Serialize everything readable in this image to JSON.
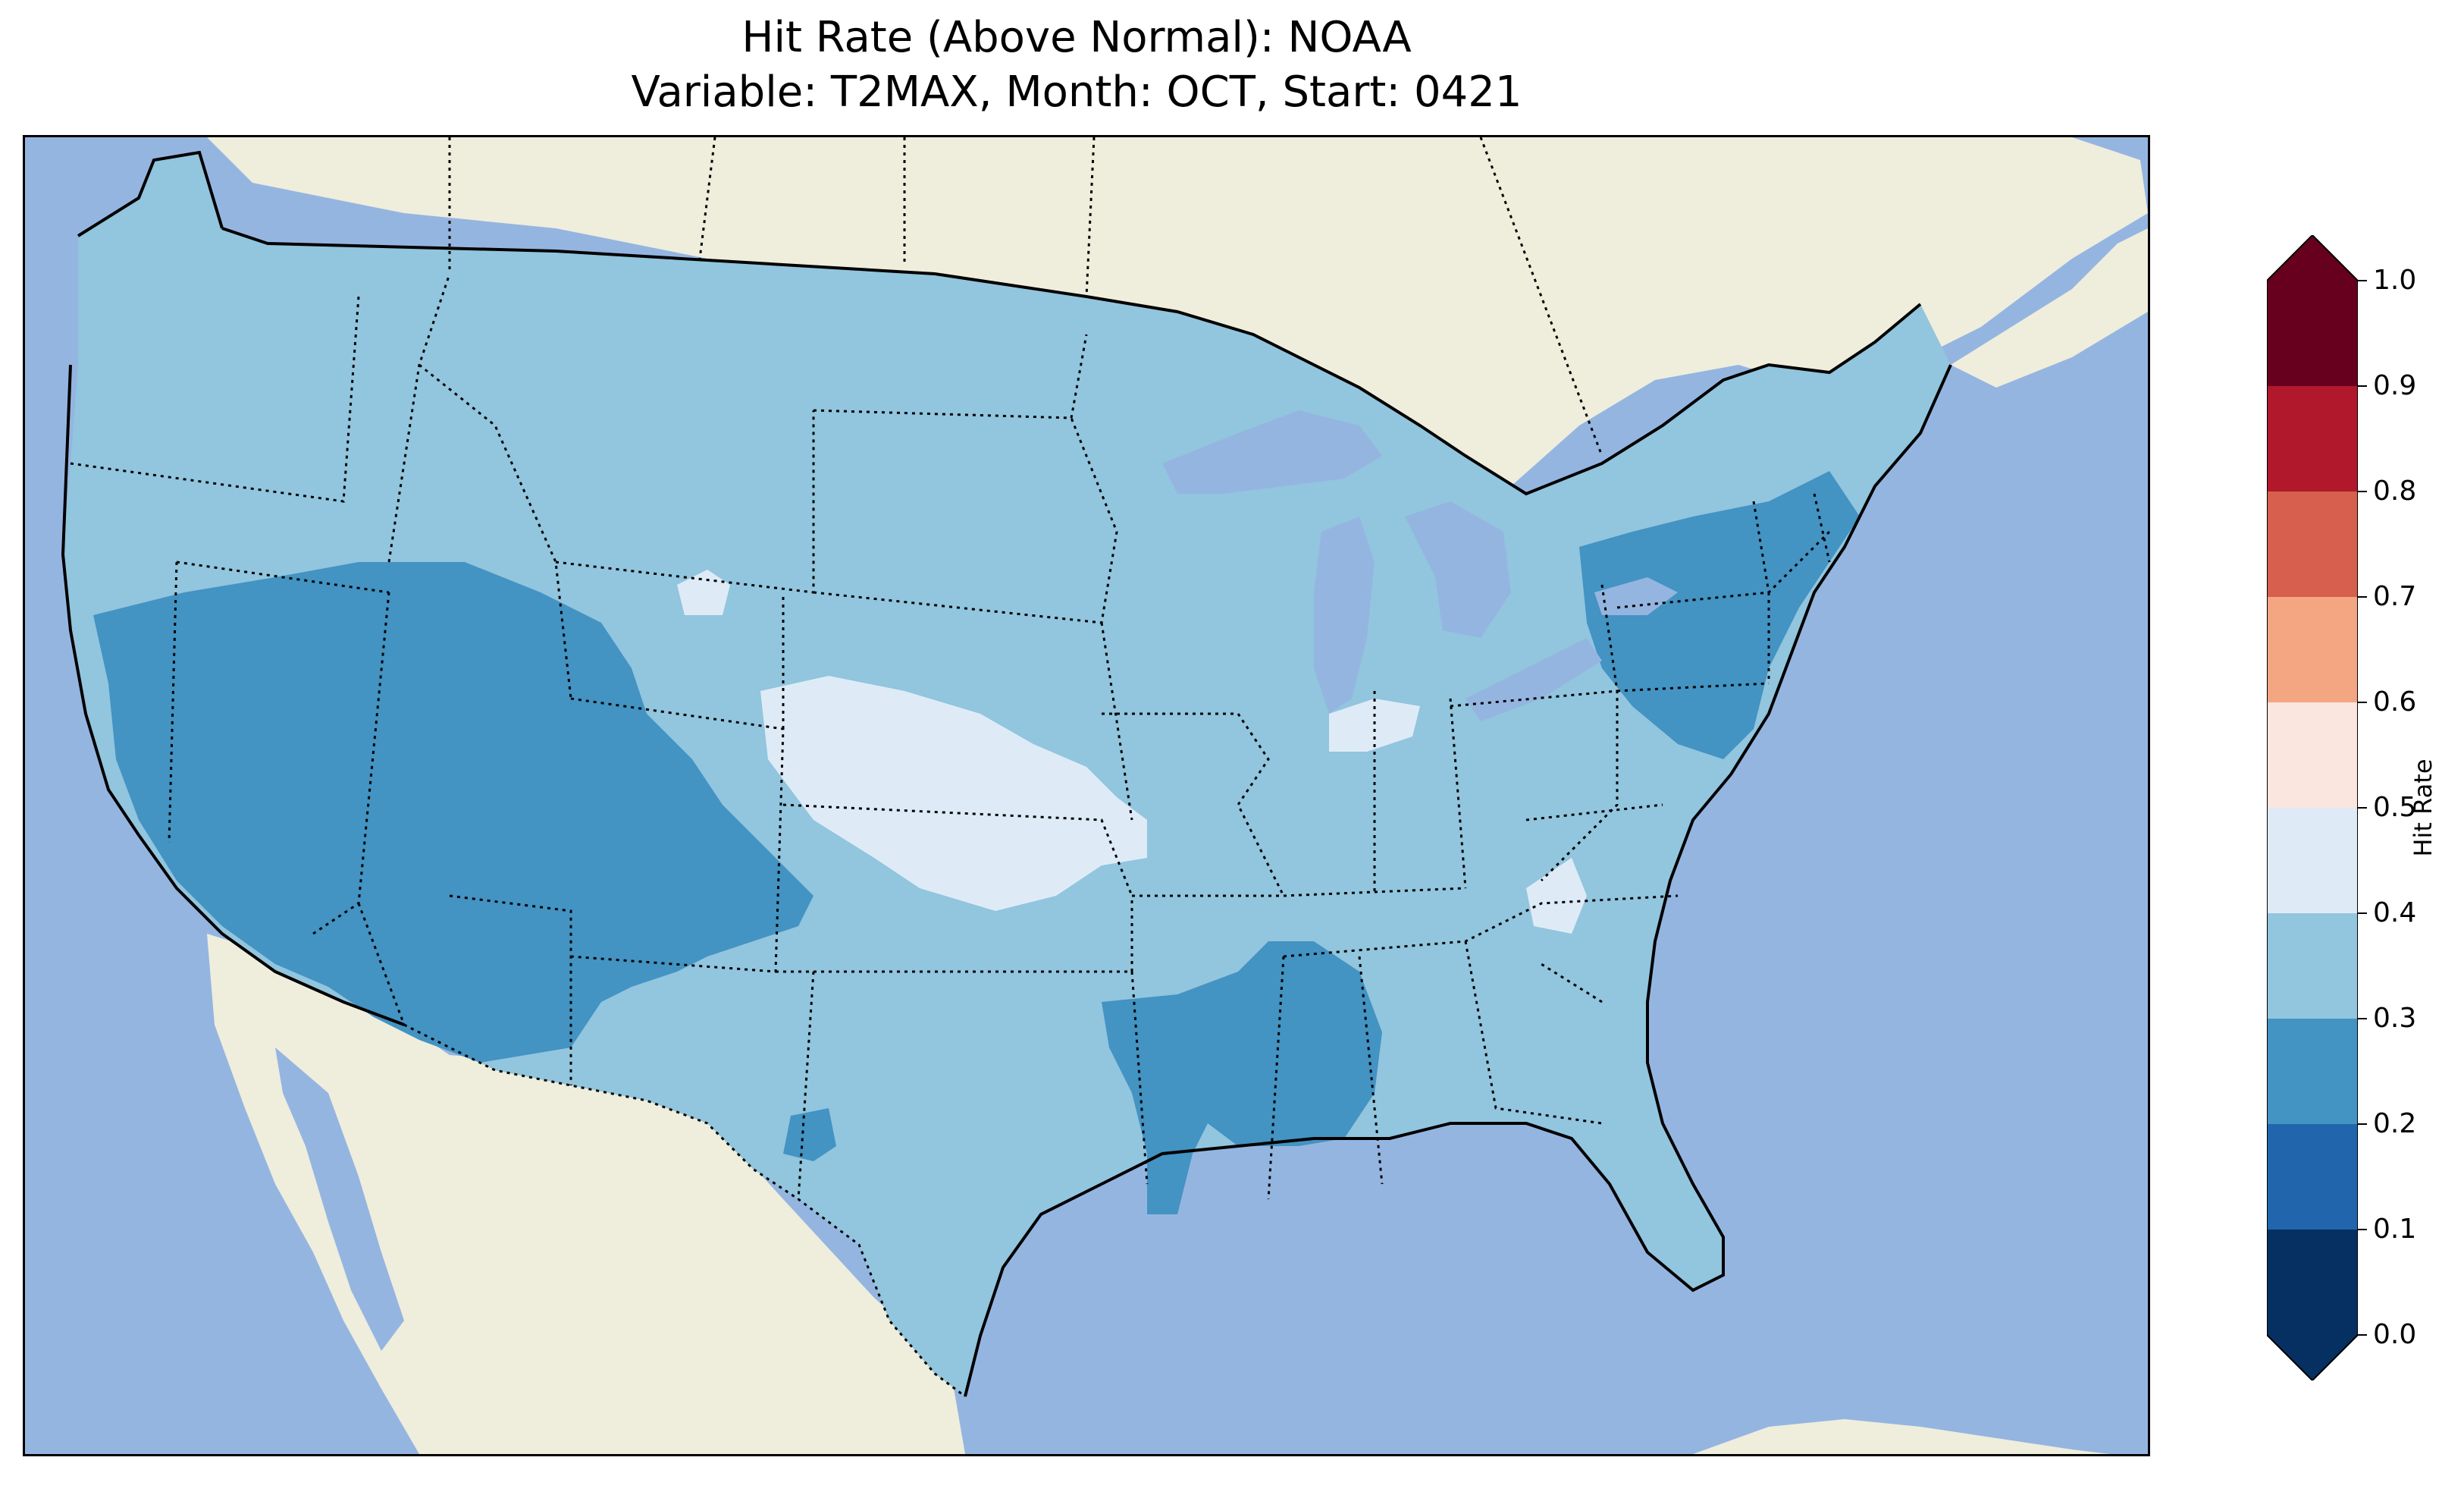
{
  "title": {
    "line1": "Hit Rate (Above Normal): NOAA",
    "line2": "Variable: T2MAX, Month: OCT, Start: 0421"
  },
  "colors": {
    "ocean": "#95b5e1",
    "land_outside": "#efeddc",
    "lakes": "#95b5e1",
    "coast_line": "#000000",
    "border_line": "#000000"
  },
  "colorbar": {
    "label": "Hit Rate",
    "ticks": [
      "0.0",
      "0.1",
      "0.2",
      "0.3",
      "0.4",
      "0.5",
      "0.6",
      "0.7",
      "0.8",
      "0.9",
      "1.0"
    ],
    "bins": [
      {
        "range": [
          0.0,
          0.1
        ],
        "color": "#053061"
      },
      {
        "range": [
          0.1,
          0.2
        ],
        "color": "#2166ac"
      },
      {
        "range": [
          0.2,
          0.3
        ],
        "color": "#4393c3"
      },
      {
        "range": [
          0.3,
          0.4
        ],
        "color": "#92c5de"
      },
      {
        "range": [
          0.4,
          0.5
        ],
        "color": "#deebf7"
      },
      {
        "range": [
          0.5,
          0.6
        ],
        "color": "#fae6de"
      },
      {
        "range": [
          0.6,
          0.7
        ],
        "color": "#f4a582"
      },
      {
        "range": [
          0.7,
          0.8
        ],
        "color": "#d6604d"
      },
      {
        "range": [
          0.8,
          0.9
        ],
        "color": "#b2182b"
      },
      {
        "range": [
          0.9,
          1.0
        ],
        "color": "#67001f"
      }
    ],
    "extend": "both",
    "under_color": "#053061",
    "over_color": "#67001f"
  },
  "chart_data": {
    "type": "heatmap",
    "region": "Contiguous United States",
    "variable": "T2MAX",
    "month": "OCT",
    "start": "0421",
    "category": "Above Normal",
    "model": "NOAA",
    "value_range": [
      0.0,
      1.0
    ],
    "dominant_value_bin": [
      0.3,
      0.4
    ],
    "regions": [
      {
        "area": "Northwest / Northern Rockies / Northern Plains / Midwest / Southeast / Texas",
        "bin": [
          0.3,
          0.4
        ]
      },
      {
        "area": "Southwest (CA, NV, UT, AZ, NM, western CO)",
        "bin": [
          0.2,
          0.3
        ]
      },
      {
        "area": "Northeast (PA, NJ, NY, New England, MD)",
        "bin": [
          0.2,
          0.3
        ]
      },
      {
        "area": "Lower Mississippi Valley (LA, MS, AL)",
        "bin": [
          0.2,
          0.3
        ]
      },
      {
        "area": "Central Plains (KS, eastern CO, northern OK)",
        "bin": [
          0.4,
          0.5
        ]
      },
      {
        "area": "Central Indiana / Ohio Valley patches",
        "bin": [
          0.4,
          0.5
        ]
      }
    ]
  }
}
